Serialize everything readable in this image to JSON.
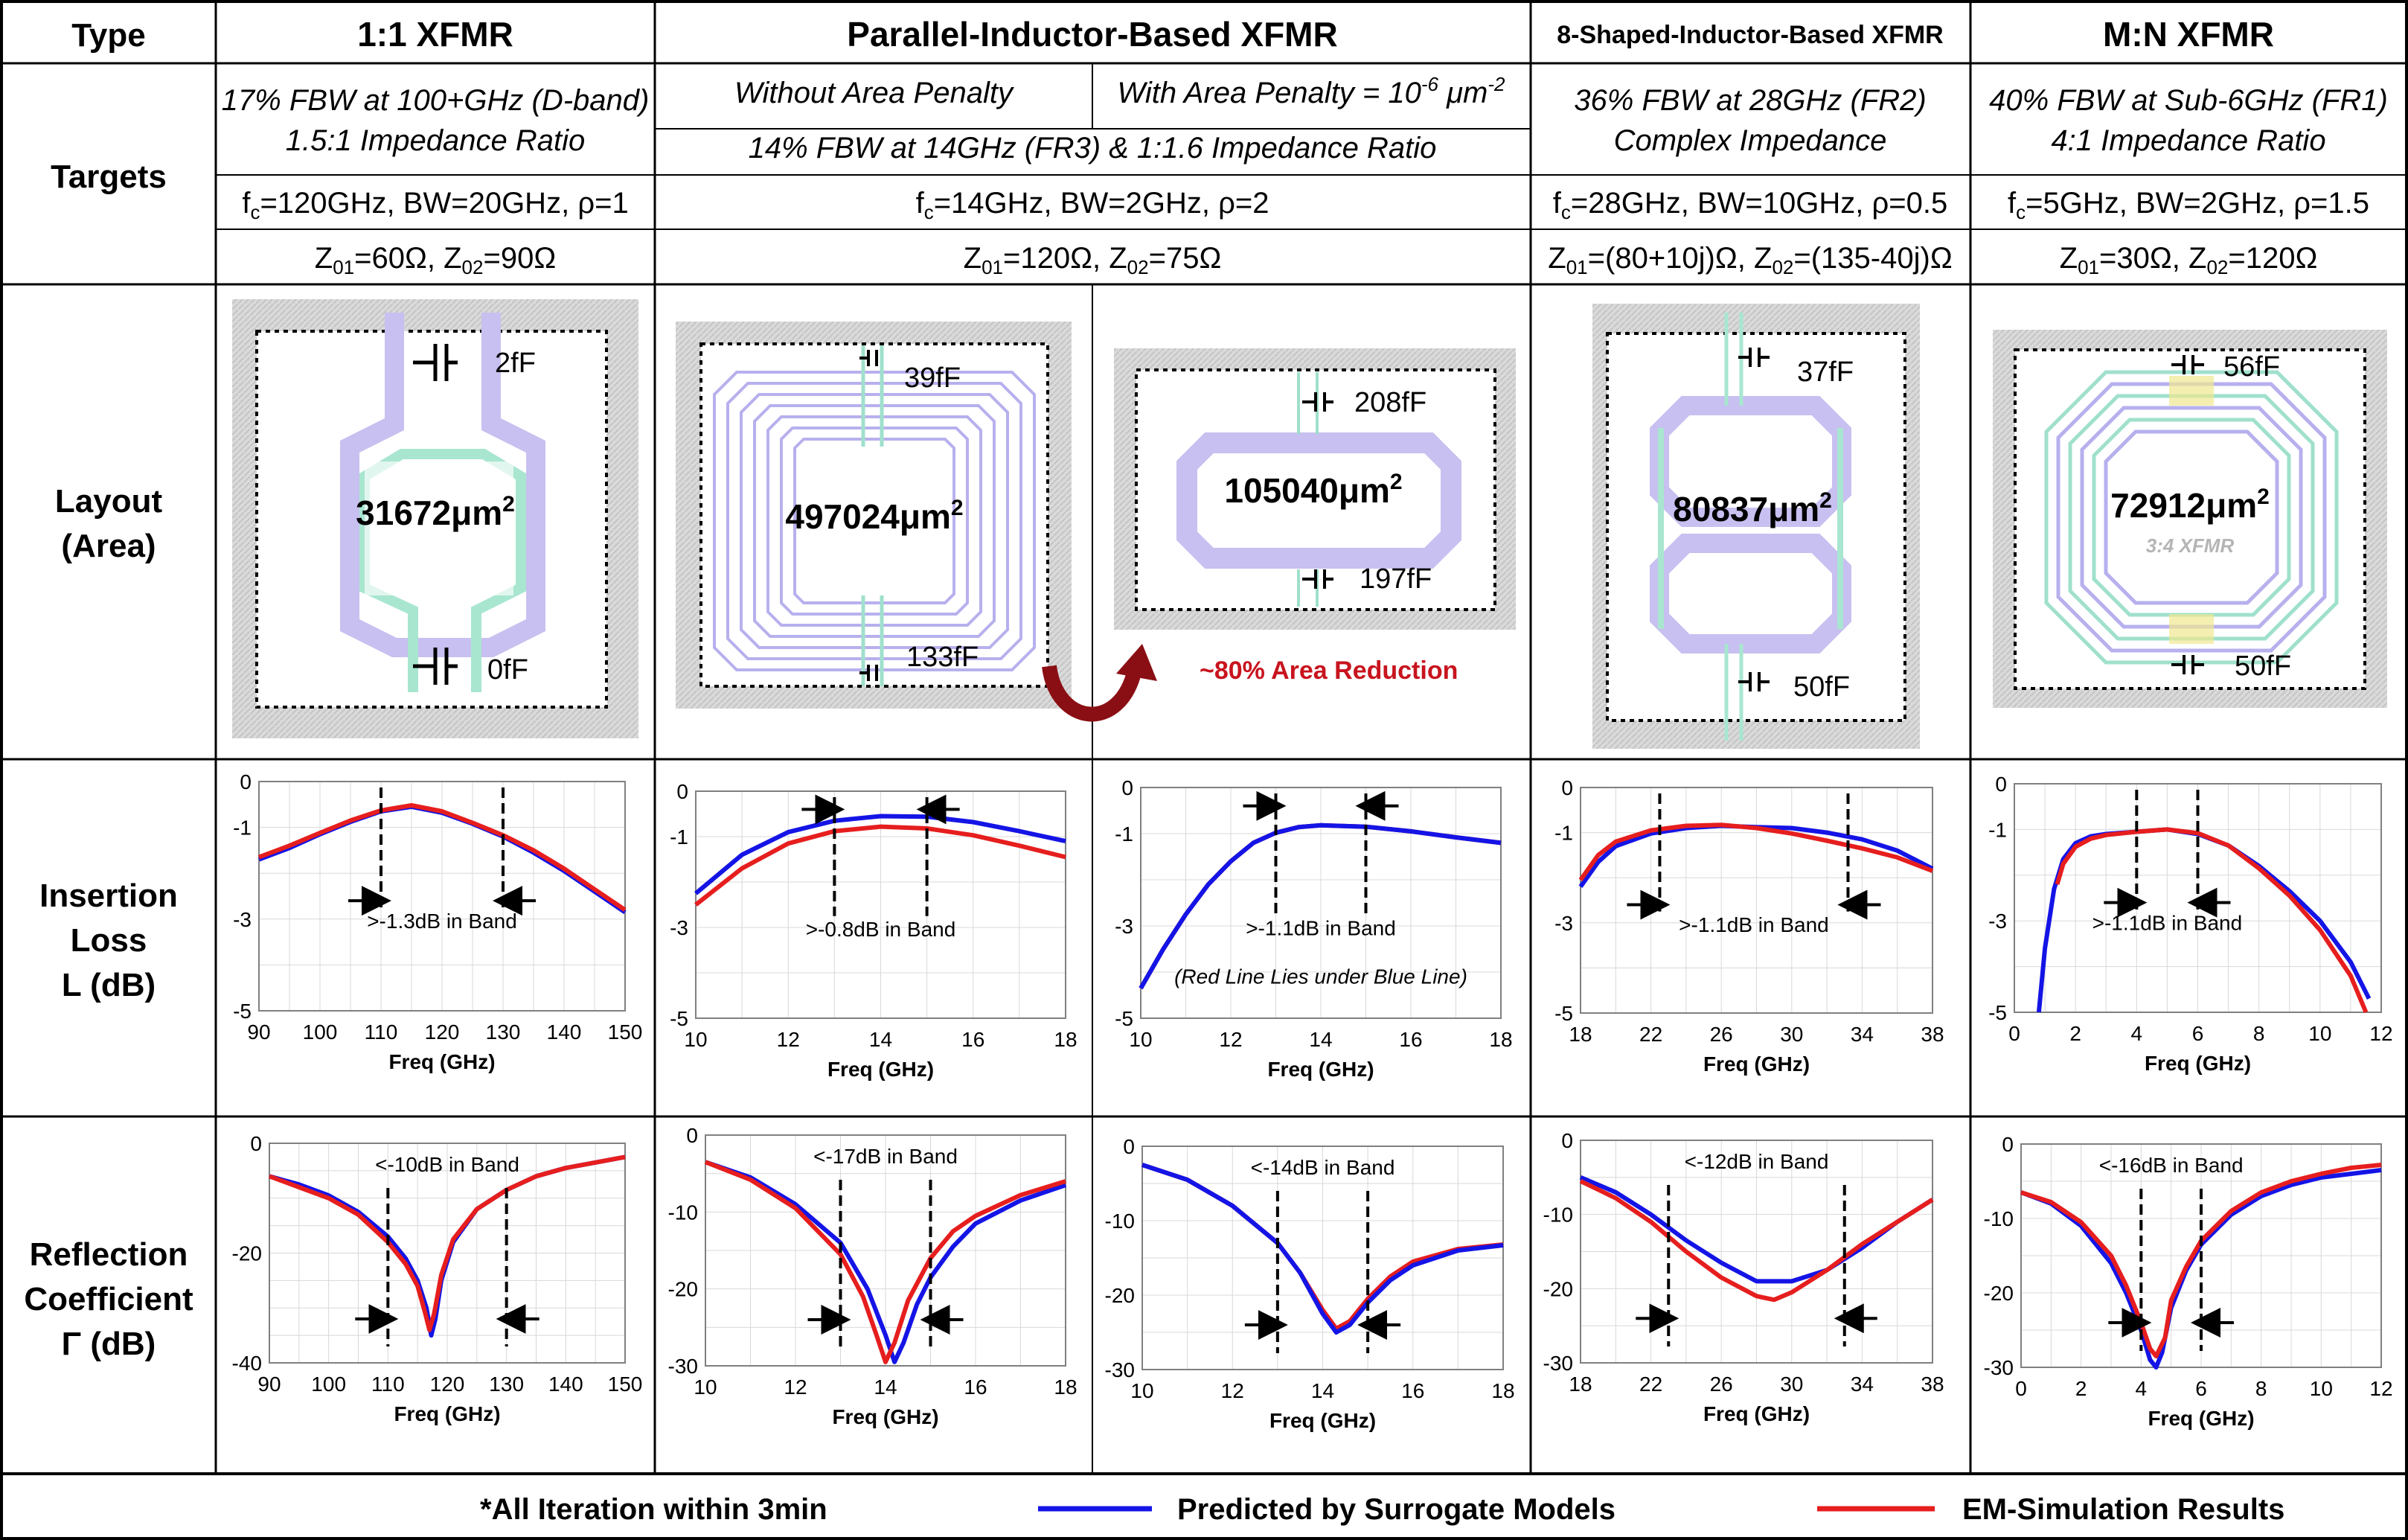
{
  "colors": {
    "predicted": "#1414e6",
    "em": "#e61e1e",
    "pad": "#d9d9d9",
    "coilP": "#b7b0ee",
    "coilS": "#9fe0cc",
    "arrow": "#b8141e",
    "areaRed": "#c8141e"
  },
  "table": {
    "row_labels": {
      "type": "Type",
      "targets": "Targets",
      "layout": [
        "Layout",
        "(Area)"
      ],
      "il": [
        "Insertion",
        "Loss",
        "L (dB)"
      ],
      "rc": [
        "Reflection",
        "Coefficient",
        "Γ (dB)"
      ]
    },
    "headers": {
      "c1": "1:1 XFMR",
      "c2": "Parallel-Inductor-Based XFMR",
      "c3": "8-Shaped-Inductor-Based XFMR",
      "c4": "M:N XFMR"
    },
    "targets": {
      "c1": [
        "17% FBW at 100+GHz (D-band)",
        "1.5:1 Impedance Ratio"
      ],
      "c2a": "Without Area Penalty",
      "c2b_pre": "With Area Penalty = 10",
      "c2b_exp": "-6",
      "c2b_post": " μm",
      "c2b_exp2": "-2",
      "c2": "14% FBW at 14GHz (FR3) & 1:1.6 Impedance Ratio",
      "c3": [
        "36% FBW at 28GHz (FR2)",
        "Complex Impedance"
      ],
      "c4": [
        "40% FBW at Sub-6GHz (FR1)",
        "4:1 Impedance Ratio"
      ]
    },
    "params": {
      "p1": {
        "fc": "120GHz",
        "bw": "20GHz",
        "rho": "1"
      },
      "p2": {
        "fc": "14GHz",
        "bw": "2GHz",
        "rho": "2"
      },
      "p3": {
        "fc": "28GHz",
        "bw": "10GHz",
        "rho": "0.5"
      },
      "p4": {
        "fc": "5GHz",
        "bw": "2GHz",
        "rho": "1.5"
      }
    },
    "fc_label": "f",
    "fc_sub": "c",
    "bw_label": "BW=",
    "rho_label": "ρ=",
    "z_label": "Z",
    "z1_sub": "01",
    "z2_sub": "02",
    "imp": {
      "p1": {
        "z1": "60Ω",
        "z2": "90Ω"
      },
      "p2": {
        "z1": "120Ω",
        "z2": "75Ω"
      },
      "p3": {
        "z1": "(80+10j)Ω",
        "z2": "(135-40j)Ω"
      },
      "p4": {
        "z1": "30Ω",
        "z2": "120Ω"
      }
    }
  },
  "layouts": [
    {
      "area": "31672μm",
      "caps": [
        "2fF",
        "0fF"
      ]
    },
    {
      "area": "497024μm",
      "caps": [
        "39fF",
        "133fF"
      ]
    },
    {
      "area": "105040μm",
      "caps": [
        "208fF",
        "197fF"
      ]
    },
    {
      "area": "80837μm",
      "caps": [
        "37fF",
        "50fF"
      ]
    },
    {
      "area": "72912μm",
      "caps": [
        "56fF",
        "50fF"
      ],
      "note": "3:4 XFMR"
    }
  ],
  "area_sup": "2",
  "area_reduction": "~80% Area Reduction",
  "legend": {
    "note": "*All Iteration within 3min",
    "predicted": "Predicted by Surrogate Models",
    "em": "EM-Simulation Results"
  },
  "chart_data": [
    {
      "id": "il1",
      "type": "line",
      "xlabel": "Freq (GHz)",
      "xlim": [
        90,
        150
      ],
      "ylim": [
        -5,
        0
      ],
      "xticks": [
        90,
        100,
        110,
        120,
        130,
        140,
        150
      ],
      "yticks": [
        0,
        -1,
        -3,
        -5
      ],
      "band": [
        110,
        130
      ],
      "annotation": ">-1.3dB in Band",
      "series": [
        {
          "name": "Predicted by Surrogate Models",
          "x": [
            90,
            95,
            100,
            105,
            110,
            115,
            120,
            125,
            130,
            135,
            140,
            145,
            150
          ],
          "y": [
            -1.7,
            -1.45,
            -1.15,
            -0.88,
            -0.65,
            -0.55,
            -0.68,
            -0.92,
            -1.2,
            -1.55,
            -1.95,
            -2.4,
            -2.85
          ]
        },
        {
          "name": "EM-Simulation Results",
          "x": [
            90,
            95,
            100,
            105,
            110,
            115,
            120,
            125,
            130,
            135,
            140,
            145,
            150
          ],
          "y": [
            -1.65,
            -1.4,
            -1.12,
            -0.85,
            -0.63,
            -0.52,
            -0.65,
            -0.9,
            -1.17,
            -1.5,
            -1.9,
            -2.35,
            -2.8
          ]
        }
      ]
    },
    {
      "id": "il2",
      "type": "line",
      "xlabel": "Freq (GHz)",
      "xlim": [
        10,
        18
      ],
      "ylim": [
        -5,
        0
      ],
      "xticks": [
        10,
        12,
        14,
        16,
        18
      ],
      "yticks": [
        0,
        -1,
        -3,
        -5
      ],
      "band": [
        13,
        15
      ],
      "annotation": ">-0.8dB in Band",
      "series": [
        {
          "name": "Predicted by Surrogate Models",
          "x": [
            10,
            11,
            12,
            13,
            14,
            15,
            16,
            17,
            18
          ],
          "y": [
            -2.25,
            -1.4,
            -0.9,
            -0.65,
            -0.55,
            -0.56,
            -0.68,
            -0.88,
            -1.1
          ]
        },
        {
          "name": "EM-Simulation Results",
          "x": [
            10,
            11,
            12,
            13,
            14,
            15,
            16,
            17,
            18
          ],
          "y": [
            -2.5,
            -1.7,
            -1.15,
            -0.88,
            -0.78,
            -0.82,
            -0.97,
            -1.2,
            -1.45
          ]
        }
      ]
    },
    {
      "id": "il3",
      "type": "line",
      "xlabel": "Freq (GHz)",
      "xlim": [
        10,
        18
      ],
      "ylim": [
        -5,
        0
      ],
      "xticks": [
        10,
        12,
        14,
        16,
        18
      ],
      "yticks": [
        0,
        -1,
        -3,
        -5
      ],
      "band": [
        13,
        15
      ],
      "annotation": ">-1.1dB in Band",
      "note": "(Red Line Lies under Blue Line)",
      "series": [
        {
          "name": "EM-Simulation Results",
          "x": [
            10,
            10.5,
            11,
            11.5,
            12,
            12.5,
            13,
            13.5,
            14,
            15,
            16,
            17,
            18
          ],
          "y": [
            -4.35,
            -3.5,
            -2.75,
            -2.1,
            -1.6,
            -1.2,
            -0.98,
            -0.86,
            -0.82,
            -0.85,
            -0.95,
            -1.08,
            -1.2
          ]
        },
        {
          "name": "Predicted by Surrogate Models",
          "x": [
            10,
            10.5,
            11,
            11.5,
            12,
            12.5,
            13,
            13.5,
            14,
            15,
            16,
            17,
            18
          ],
          "y": [
            -4.35,
            -3.5,
            -2.75,
            -2.1,
            -1.6,
            -1.2,
            -0.98,
            -0.86,
            -0.82,
            -0.85,
            -0.95,
            -1.08,
            -1.2
          ]
        }
      ]
    },
    {
      "id": "il4",
      "type": "line",
      "xlabel": "Freq (GHz)",
      "xlim": [
        18,
        38
      ],
      "ylim": [
        -5,
        0
      ],
      "xticks": [
        18,
        22,
        26,
        30,
        34,
        38
      ],
      "yticks": [
        0,
        -1,
        -3,
        -5
      ],
      "band": [
        22.5,
        33.2
      ],
      "annotation": ">-1.1dB in Band",
      "series": [
        {
          "name": "Predicted by Surrogate Models",
          "x": [
            18,
            19,
            20,
            22,
            24,
            26,
            28,
            30,
            32,
            34,
            36,
            38
          ],
          "y": [
            -2.2,
            -1.65,
            -1.3,
            -1.02,
            -0.9,
            -0.85,
            -0.88,
            -0.9,
            -1.0,
            -1.15,
            -1.4,
            -1.8
          ]
        },
        {
          "name": "EM-Simulation Results",
          "x": [
            18,
            19,
            20,
            22,
            24,
            26,
            28,
            30,
            32,
            34,
            36,
            38
          ],
          "y": [
            -2.05,
            -1.5,
            -1.2,
            -0.95,
            -0.85,
            -0.83,
            -0.9,
            -1.02,
            -1.18,
            -1.35,
            -1.55,
            -1.85
          ]
        }
      ]
    },
    {
      "id": "il5",
      "type": "line",
      "xlabel": "Freq (GHz)",
      "xlim": [
        0,
        12
      ],
      "ylim": [
        -5,
        0
      ],
      "xticks": [
        0,
        2,
        4,
        6,
        8,
        10,
        12
      ],
      "yticks": [
        0,
        -1,
        -3,
        -5
      ],
      "band": [
        4,
        6
      ],
      "annotation": ">-1.1dB in Band",
      "series": [
        {
          "name": "Predicted by Surrogate Models",
          "x": [
            0.8,
            1,
            1.3,
            1.6,
            2,
            2.5,
            3,
            4,
            5,
            6,
            7,
            8,
            9,
            10,
            11,
            11.6
          ],
          "y": [
            -5,
            -3.6,
            -2.3,
            -1.65,
            -1.3,
            -1.15,
            -1.1,
            -1.05,
            -1.0,
            -1.1,
            -1.35,
            -1.8,
            -2.35,
            -3.0,
            -3.9,
            -4.7
          ]
        },
        {
          "name": "EM-Simulation Results",
          "x": [
            1.4,
            1.6,
            2,
            2.5,
            3,
            4,
            5,
            6,
            7,
            8,
            9,
            10,
            11,
            11.5
          ],
          "y": [
            -2.2,
            -1.75,
            -1.38,
            -1.2,
            -1.12,
            -1.05,
            -1.0,
            -1.08,
            -1.35,
            -1.85,
            -2.45,
            -3.2,
            -4.2,
            -5
          ]
        }
      ]
    },
    {
      "id": "rc1",
      "type": "line",
      "xlabel": "Freq (GHz)",
      "xlim": [
        90,
        150
      ],
      "ylim": [
        -40,
        0
      ],
      "xticks": [
        90,
        100,
        110,
        120,
        130,
        140,
        150
      ],
      "yticks": [
        0,
        -20,
        -40
      ],
      "band": [
        110,
        130
      ],
      "annotation": "<-10dB in Band",
      "series": [
        {
          "name": "Predicted by Surrogate Models",
          "x": [
            90,
            95,
            100,
            105,
            110,
            113,
            115,
            116.5,
            117.3,
            118,
            119,
            121,
            125,
            130,
            135,
            140,
            145,
            150
          ],
          "y": [
            -6,
            -7.5,
            -9.5,
            -12.5,
            -17,
            -21,
            -25,
            -30,
            -35,
            -32,
            -25,
            -18,
            -12,
            -8.5,
            -6,
            -4.5,
            -3.5,
            -2.5
          ]
        },
        {
          "name": "EM-Simulation Results",
          "x": [
            90,
            95,
            100,
            105,
            110,
            113,
            115,
            116.3,
            117,
            117.8,
            119,
            121,
            125,
            130,
            135,
            140,
            145,
            150
          ],
          "y": [
            -6,
            -8,
            -10,
            -13,
            -18,
            -22,
            -26,
            -31,
            -34,
            -31,
            -24,
            -17.5,
            -12,
            -8.5,
            -6,
            -4.5,
            -3.5,
            -2.5
          ]
        }
      ]
    },
    {
      "id": "rc2",
      "type": "line",
      "xlabel": "Freq (GHz)",
      "xlim": [
        10,
        18
      ],
      "ylim": [
        -30,
        0
      ],
      "xticks": [
        10,
        12,
        14,
        16,
        18
      ],
      "yticks": [
        0,
        -10,
        -20,
        -30
      ],
      "band": [
        13,
        15
      ],
      "annotation": "<-17dB in Band",
      "series": [
        {
          "name": "Predicted by Surrogate Models",
          "x": [
            10,
            11,
            12,
            13,
            13.6,
            14,
            14.2,
            14.4,
            14.7,
            15,
            15.5,
            16,
            17,
            18
          ],
          "y": [
            -3.5,
            -5.5,
            -9,
            -14,
            -20,
            -26,
            -29.5,
            -27,
            -22,
            -18.5,
            -14.5,
            -11.5,
            -8.5,
            -6.5
          ]
        },
        {
          "name": "EM-Simulation Results",
          "x": [
            10,
            11,
            12,
            13,
            13.5,
            13.8,
            14,
            14.2,
            14.5,
            15,
            15.5,
            16,
            17,
            18
          ],
          "y": [
            -3.5,
            -5.8,
            -9.5,
            -15.5,
            -21,
            -26,
            -29.5,
            -27,
            -21.5,
            -16,
            -12.5,
            -10.5,
            -7.8,
            -6
          ]
        }
      ]
    },
    {
      "id": "rc3",
      "type": "line",
      "xlabel": "Freq (GHz)",
      "xlim": [
        10,
        18
      ],
      "ylim": [
        -30,
        0
      ],
      "xticks": [
        10,
        12,
        14,
        16,
        18
      ],
      "yticks": [
        0,
        -10,
        -20,
        -30
      ],
      "band": [
        13,
        15
      ],
      "annotation": "<-14dB in Band",
      "series": [
        {
          "name": "EM-Simulation Results",
          "x": [
            10,
            11,
            12,
            13,
            13.5,
            14,
            14.3,
            14.6,
            15,
            15.5,
            16,
            17,
            18
          ],
          "y": [
            -2.5,
            -4.5,
            -8,
            -13,
            -17,
            -22,
            -24.5,
            -23.5,
            -20.5,
            -17.5,
            -15.5,
            -13.8,
            -13.2
          ]
        },
        {
          "name": "Predicted by Surrogate Models",
          "x": [
            10,
            11,
            12,
            13,
            13.5,
            14,
            14.3,
            14.6,
            15,
            15.5,
            16,
            17,
            18
          ],
          "y": [
            -2.5,
            -4.5,
            -8,
            -13,
            -17,
            -22.5,
            -25,
            -24,
            -21,
            -18,
            -16,
            -14,
            -13.3
          ]
        }
      ]
    },
    {
      "id": "rc4",
      "type": "line",
      "xlabel": "Freq (GHz)",
      "xlim": [
        18,
        38
      ],
      "ylim": [
        -30,
        0
      ],
      "xticks": [
        18,
        22,
        26,
        30,
        34,
        38
      ],
      "yticks": [
        0,
        -10,
        -20,
        -30
      ],
      "band": [
        23,
        33
      ],
      "annotation": "<-12dB in Band",
      "series": [
        {
          "name": "Predicted by Surrogate Models",
          "x": [
            18,
            20,
            22,
            24,
            26,
            28,
            30,
            32,
            34,
            36,
            38
          ],
          "y": [
            -5,
            -7,
            -10,
            -13.5,
            -16.5,
            -19,
            -19,
            -17.5,
            -14.5,
            -11,
            -8
          ]
        },
        {
          "name": "EM-Simulation Results",
          "x": [
            18,
            20,
            22,
            24,
            26,
            28,
            29,
            30,
            32,
            34,
            36,
            38
          ],
          "y": [
            -5.5,
            -7.8,
            -11,
            -15,
            -18.5,
            -21,
            -21.5,
            -20.5,
            -17.5,
            -14,
            -11,
            -8
          ]
        }
      ]
    },
    {
      "id": "rc5",
      "type": "line",
      "xlabel": "Freq (GHz)",
      "xlim": [
        0,
        12
      ],
      "ylim": [
        -30,
        0
      ],
      "xticks": [
        0,
        2,
        4,
        6,
        8,
        10,
        12
      ],
      "yticks": [
        0,
        -10,
        -20,
        -30
      ],
      "band": [
        4,
        6
      ],
      "annotation": "<-16dB in Band",
      "series": [
        {
          "name": "Predicted by Surrogate Models",
          "x": [
            0,
            1,
            2,
            3,
            3.5,
            4,
            4.3,
            4.5,
            4.7,
            5,
            5.5,
            6,
            7,
            8,
            9,
            10,
            11,
            12
          ],
          "y": [
            -6.5,
            -8,
            -11,
            -16,
            -20,
            -25,
            -29,
            -30,
            -28,
            -22,
            -17,
            -13.5,
            -9.5,
            -7,
            -5.5,
            -4.5,
            -4,
            -3.5
          ]
        },
        {
          "name": "EM-Simulation Results",
          "x": [
            0,
            1,
            2,
            3,
            3.5,
            4,
            4.3,
            4.5,
            4.8,
            5,
            5.5,
            6,
            7,
            8,
            9,
            10,
            11,
            12
          ],
          "y": [
            -6.5,
            -7.8,
            -10.5,
            -15,
            -19,
            -24,
            -27.5,
            -28.5,
            -26,
            -21,
            -16.5,
            -13,
            -9,
            -6.5,
            -5,
            -4,
            -3.2,
            -2.8
          ]
        }
      ]
    }
  ]
}
